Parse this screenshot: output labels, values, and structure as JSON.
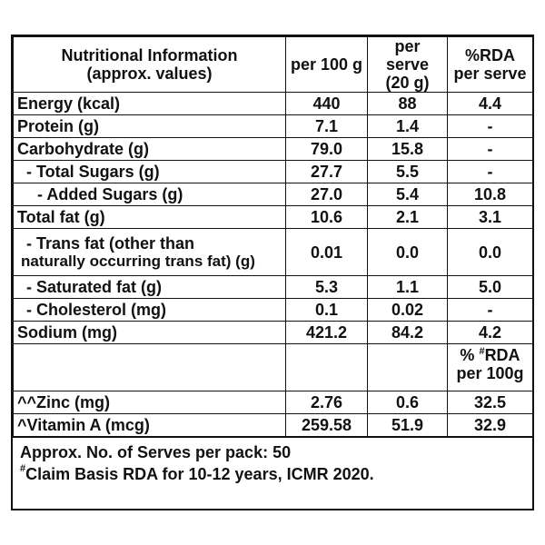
{
  "header": {
    "col1_line1": "Nutritional Information",
    "col1_line2": "(approx. values)",
    "col2": "per 100 g",
    "col3_line1": "per serve",
    "col3_line2": "(20 g)",
    "col4_line1": "%RDA",
    "col4_line2": "per serve"
  },
  "rows": [
    {
      "label": "Energy (kcal)",
      "per100": "440",
      "perServe": "88",
      "rda": "4.4"
    },
    {
      "label": "Protein (g)",
      "per100": "7.1",
      "perServe": "1.4",
      "rda": "-"
    },
    {
      "label": "Carbohydrate (g)",
      "per100": "79.0",
      "perServe": "15.8",
      "rda": "-"
    },
    {
      "label": "- Total Sugars (g)",
      "per100": "27.7",
      "perServe": "5.5",
      "rda": "-"
    },
    {
      "label": "- Added Sugars (g)",
      "per100": "27.0",
      "perServe": "5.4",
      "rda": "10.8"
    },
    {
      "label": "Total fat (g)",
      "per100": "10.6",
      "perServe": "2.1",
      "rda": "3.1"
    },
    {
      "label_line1": "- Trans fat (other than",
      "label_line2": "naturally occurring trans fat) (g)",
      "per100": "0.01",
      "perServe": "0.0",
      "rda": "0.0"
    },
    {
      "label": "- Saturated fat (g)",
      "per100": "5.3",
      "perServe": "1.1",
      "rda": "5.0"
    },
    {
      "label": "- Cholesterol (mg)",
      "per100": "0.1",
      "perServe": "0.02",
      "rda": "-"
    },
    {
      "label": "Sodium (mg)",
      "per100": "421.2",
      "perServe": "84.2",
      "rda": "4.2"
    }
  ],
  "subheader": {
    "line1_prefix": "% ",
    "line1_mark": "#",
    "line1_suffix": "RDA",
    "line2": "per 100g"
  },
  "micro_rows": [
    {
      "label": "^^Zinc (mg)",
      "per100": "2.76",
      "perServe": "0.6",
      "rda": "32.5"
    },
    {
      "label": "^Vitamin A (mcg)",
      "per100": "259.58",
      "perServe": "51.9",
      "rda": "32.9"
    }
  ],
  "footer": {
    "line1": "Approx. No. of Serves per pack: 50",
    "line2_mark": "#",
    "line2": "Claim Basis RDA for 10-12 years, ICMR 2020."
  }
}
